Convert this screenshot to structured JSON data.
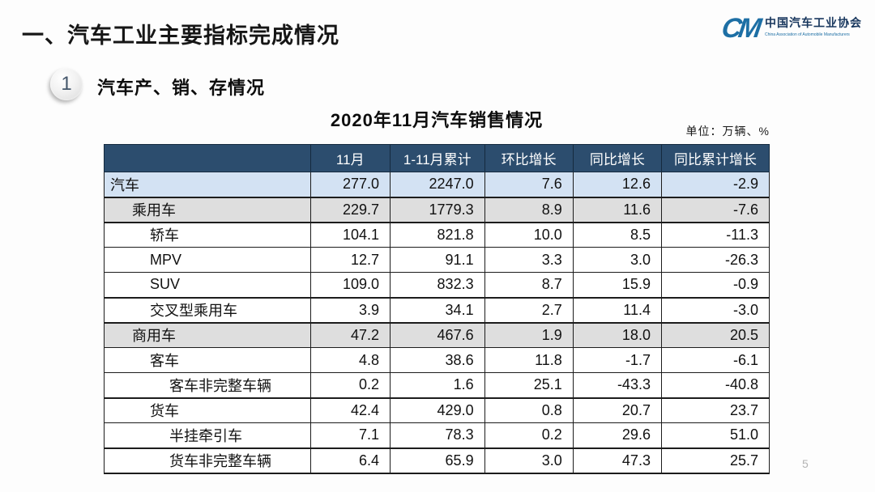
{
  "page": {
    "title": "一、汽车工业主要指标完成情况",
    "page_number": "5"
  },
  "logo": {
    "monogram": "CM",
    "name_cn": "中国汽车工业协会",
    "name_en": "China Association of Automobile Manufacturers",
    "brand_color": "#1d6fa5"
  },
  "section": {
    "badge": "1",
    "title": "汽车产、销、存情况"
  },
  "table": {
    "title": "2020年11月汽车销售情况",
    "unit_label": "单位：万辆、%",
    "columns": [
      "",
      "11月",
      "1-11月累计",
      "环比增长",
      "同比增长",
      "同比累计增长"
    ],
    "rows": [
      {
        "label": "汽车",
        "indent": 0,
        "style": "blue",
        "thick": true,
        "values": [
          "277.0",
          "2247.0",
          "7.6",
          "12.6",
          "-2.9"
        ]
      },
      {
        "label": "乘用车",
        "indent": 1,
        "style": "gray",
        "thick": true,
        "values": [
          "229.7",
          "1779.3",
          "8.9",
          "11.6",
          "-7.6"
        ]
      },
      {
        "label": "轿车",
        "indent": 2,
        "style": "white",
        "thick": false,
        "values": [
          "104.1",
          "821.8",
          "10.0",
          "8.5",
          "-11.3"
        ]
      },
      {
        "label": "MPV",
        "indent": 2,
        "style": "white",
        "thick": false,
        "values": [
          "12.7",
          "91.1",
          "3.3",
          "3.0",
          "-26.3"
        ]
      },
      {
        "label": "SUV",
        "indent": 2,
        "style": "white",
        "thick": true,
        "values": [
          "109.0",
          "832.3",
          "8.7",
          "15.9",
          "-0.9"
        ]
      },
      {
        "label": "交叉型乘用车",
        "indent": 2,
        "style": "white",
        "thick": true,
        "values": [
          "3.9",
          "34.1",
          "2.7",
          "11.4",
          "-3.0"
        ]
      },
      {
        "label": "商用车",
        "indent": 1,
        "style": "gray",
        "thick": false,
        "values": [
          "47.2",
          "467.6",
          "1.9",
          "18.0",
          "20.5"
        ]
      },
      {
        "label": "客车",
        "indent": 2,
        "style": "white",
        "thick": false,
        "values": [
          "4.8",
          "38.6",
          "11.8",
          "-1.7",
          "-6.1"
        ]
      },
      {
        "label": "客车非完整车辆",
        "indent": 3,
        "style": "white",
        "thick": true,
        "values": [
          "0.2",
          "1.6",
          "25.1",
          "-43.3",
          "-40.8"
        ]
      },
      {
        "label": "货车",
        "indent": 2,
        "style": "white",
        "thick": false,
        "values": [
          "42.4",
          "429.0",
          "0.8",
          "20.7",
          "23.7"
        ]
      },
      {
        "label": "半挂牵引车",
        "indent": 3,
        "style": "white",
        "thick": true,
        "values": [
          "7.1",
          "78.3",
          "0.2",
          "29.6",
          "51.0"
        ]
      },
      {
        "label": "货车非完整车辆",
        "indent": 3,
        "style": "white",
        "thick": false,
        "values": [
          "6.4",
          "65.9",
          "3.0",
          "47.3",
          "25.7"
        ]
      }
    ]
  },
  "colors": {
    "header_bg": "#2c4d6e",
    "row_highlight_blue": "#d3e2f3",
    "row_highlight_gray": "#dedede",
    "border": "#1c1c1c"
  }
}
